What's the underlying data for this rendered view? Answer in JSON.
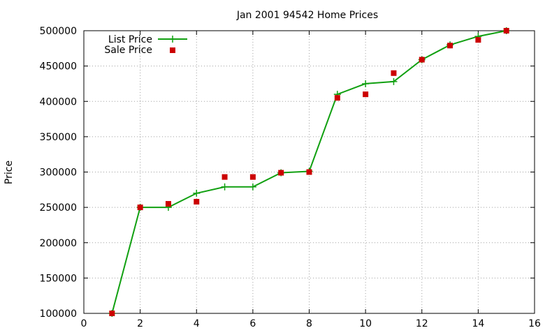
{
  "chart_data": {
    "type": "line",
    "title": "Jan 2001 94542 Home Prices",
    "xlabel": "",
    "ylabel": "Price",
    "xlim": [
      0,
      16
    ],
    "ylim": [
      100000,
      500000
    ],
    "x_ticks": [
      0,
      2,
      4,
      6,
      8,
      10,
      12,
      14,
      16
    ],
    "y_ticks": [
      100000,
      150000,
      200000,
      250000,
      300000,
      350000,
      400000,
      450000,
      500000
    ],
    "grid": true,
    "legend_position": "top-left",
    "series": [
      {
        "name": "List Price",
        "style": "linespoints",
        "color": "#11a011",
        "marker": "plus",
        "x": [
          1,
          2,
          3,
          4,
          5,
          6,
          7,
          8,
          9,
          10,
          11,
          12,
          13,
          14,
          15
        ],
        "y": [
          100000,
          250000,
          250000,
          270000,
          279000,
          279000,
          299000,
          301000,
          410000,
          425000,
          428000,
          459000,
          480000,
          492000,
          500000
        ]
      },
      {
        "name": "Sale Price",
        "style": "points",
        "color": "#cc0000",
        "marker": "square",
        "x": [
          1,
          2,
          3,
          4,
          5,
          6,
          7,
          8,
          9,
          10,
          11,
          12,
          13,
          14,
          15
        ],
        "y": [
          100000,
          250000,
          255000,
          258000,
          293000,
          293000,
          299000,
          300000,
          405000,
          410000,
          440000,
          459000,
          479000,
          487000,
          500000
        ]
      }
    ]
  }
}
